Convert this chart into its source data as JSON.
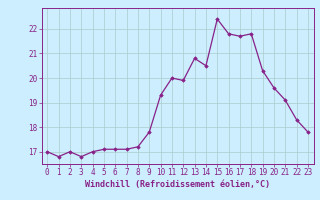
{
  "x": [
    0,
    1,
    2,
    3,
    4,
    5,
    6,
    7,
    8,
    9,
    10,
    11,
    12,
    13,
    14,
    15,
    16,
    17,
    18,
    19,
    20,
    21,
    22,
    23
  ],
  "y": [
    17.0,
    16.8,
    17.0,
    16.8,
    17.0,
    17.1,
    17.1,
    17.1,
    17.2,
    17.8,
    19.3,
    20.0,
    19.9,
    20.8,
    20.5,
    22.4,
    21.8,
    21.7,
    21.8,
    20.3,
    19.6,
    19.1,
    18.3,
    17.8
  ],
  "line_color": "#882288",
  "marker": "D",
  "marker_size": 1.8,
  "bg_color": "#cceeff",
  "grid_color": "#aacccc",
  "xlabel": "Windchill (Refroidissement éolien,°C)",
  "ylim": [
    16.5,
    22.85
  ],
  "xlim": [
    -0.5,
    23.5
  ],
  "yticks": [
    17,
    18,
    19,
    20,
    21,
    22
  ],
  "xticks": [
    0,
    1,
    2,
    3,
    4,
    5,
    6,
    7,
    8,
    9,
    10,
    11,
    12,
    13,
    14,
    15,
    16,
    17,
    18,
    19,
    20,
    21,
    22,
    23
  ],
  "tick_color": "#882288",
  "label_color": "#882288",
  "tick_fontsize": 5.5,
  "xlabel_fontsize": 6.0,
  "linewidth": 0.9,
  "spine_color": "#882288"
}
